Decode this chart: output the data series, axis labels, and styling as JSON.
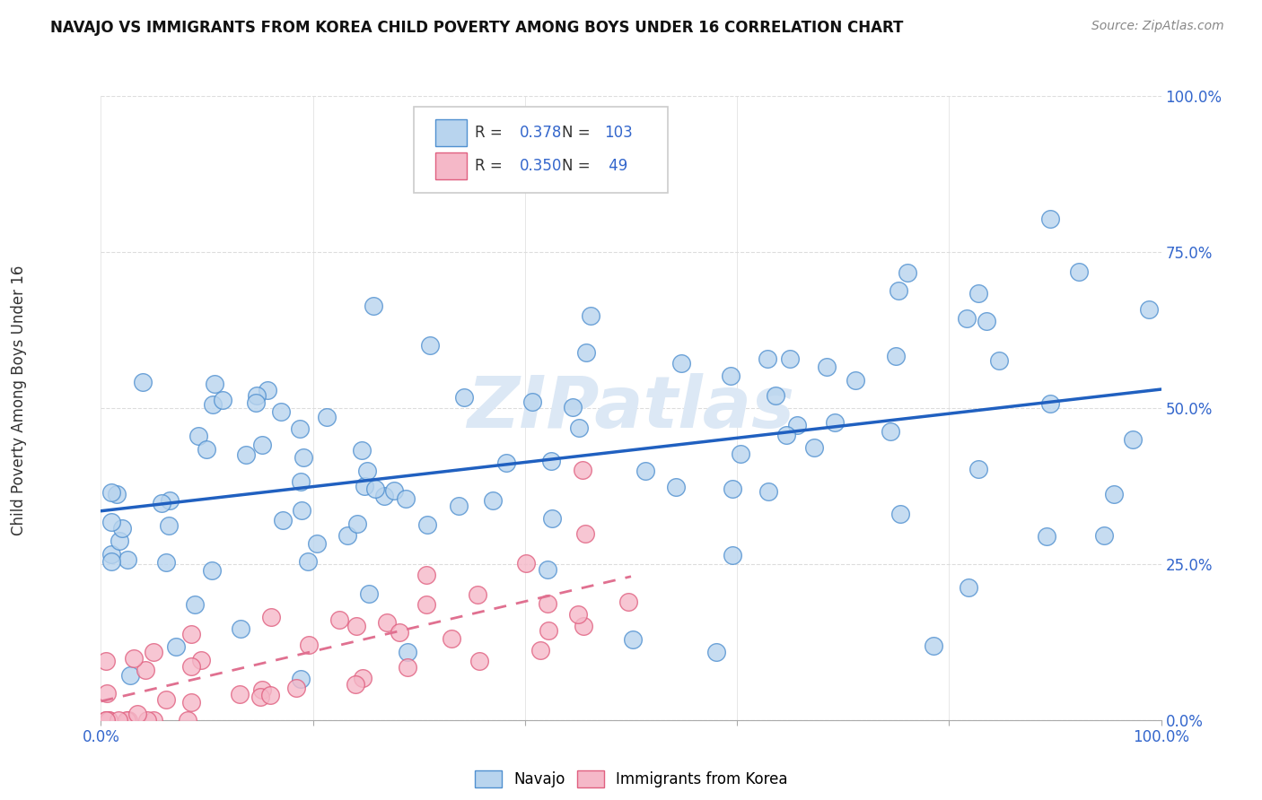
{
  "title": "NAVAJO VS IMMIGRANTS FROM KOREA CHILD POVERTY AMONG BOYS UNDER 16 CORRELATION CHART",
  "source": "Source: ZipAtlas.com",
  "ylabel": "Child Poverty Among Boys Under 16",
  "yticks_labels": [
    "0.0%",
    "25.0%",
    "50.0%",
    "75.0%",
    "100.0%"
  ],
  "ytick_vals": [
    0.0,
    0.25,
    0.5,
    0.75,
    1.0
  ],
  "xticks_labels": [
    "0.0%",
    "100.0%"
  ],
  "xtick_vals": [
    0.0,
    1.0
  ],
  "navajo_R": 0.378,
  "navajo_N": 103,
  "korea_R": 0.35,
  "korea_N": 49,
  "navajo_color": "#b8d4ee",
  "korea_color": "#f5b8c8",
  "navajo_edge_color": "#5090d0",
  "korea_edge_color": "#e06080",
  "navajo_line_color": "#2060c0",
  "korea_line_color": "#e07090",
  "axis_color": "#3366cc",
  "background_color": "#ffffff",
  "grid_color": "#dddddd",
  "watermark_color": "#dce8f5",
  "legend_border_color": "#cccccc",
  "title_color": "#111111",
  "source_color": "#888888",
  "ylabel_color": "#333333",
  "navajo_trend_intercept": 0.335,
  "navajo_trend_slope": 0.195,
  "korea_trend_intercept": 0.03,
  "korea_trend_slope": 0.4,
  "korea_trend_xmax": 0.5
}
